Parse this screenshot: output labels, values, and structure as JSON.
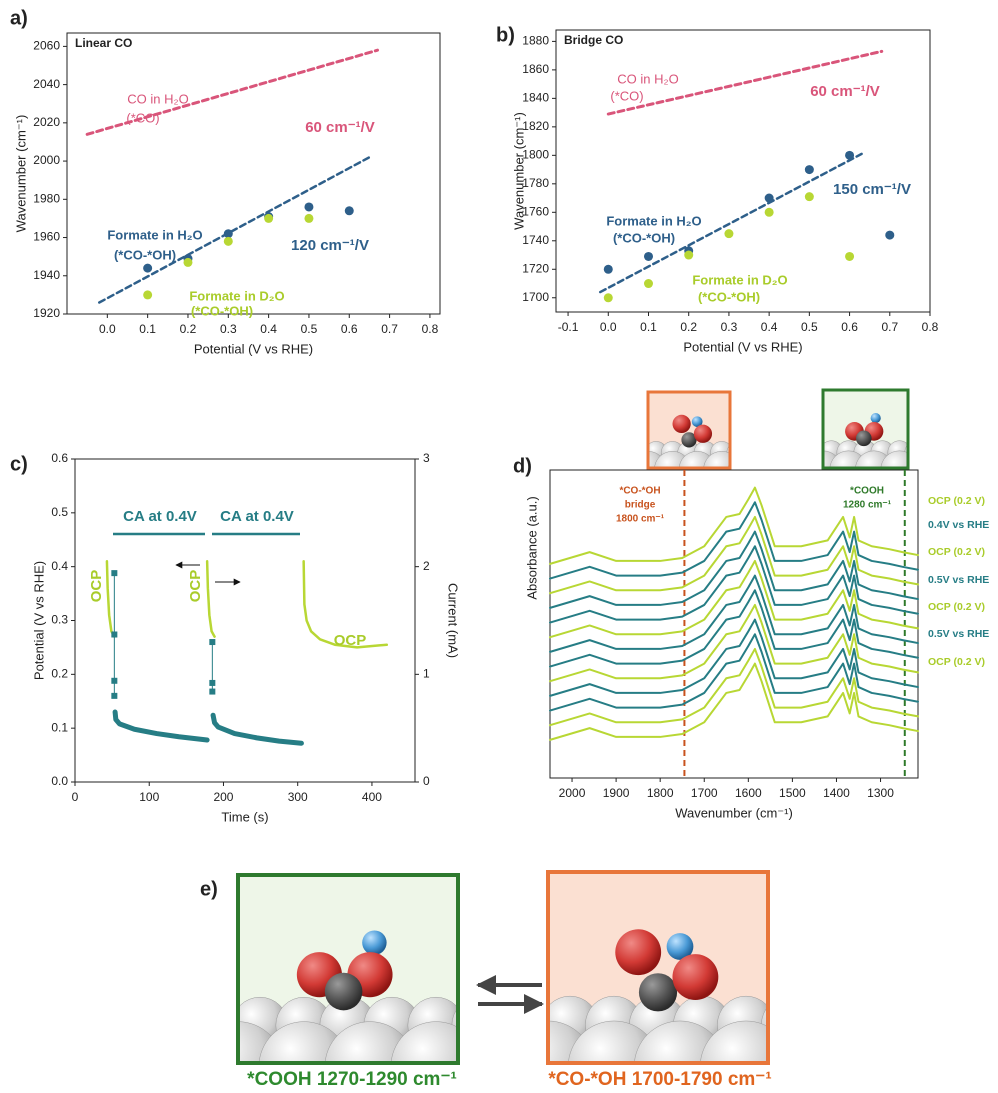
{
  "panel_labels": [
    "a)",
    "b)",
    "c)",
    "d)",
    "e)"
  ],
  "chart_data": [
    {
      "type": "scatter",
      "title": "Linear CO",
      "xlabel": "Potential (V vs RHE)",
      "ylabel": "Wavenumber (cm⁻¹)",
      "xlim": [
        -0.1,
        0.825
      ],
      "ylim": [
        1920,
        2067
      ],
      "xticks": [
        {
          "value": 0,
          "label": "0.0"
        },
        0.1,
        0.2,
        0.3,
        0.4,
        0.5,
        0.6,
        0.7,
        0.8
      ],
      "yticks": [
        1920,
        1940,
        1960,
        1980,
        2000,
        2020,
        2040,
        2060
      ],
      "series": [
        {
          "color": "#d9557a",
          "mode": "line",
          "dash": true,
          "width": 3,
          "x": [
            -0.05,
            0.67
          ],
          "values": [
            2014,
            2058
          ]
        },
        {
          "color": "#2e5f8a",
          "mode": "line",
          "dash": true,
          "width": 2.5,
          "x": [
            -0.02,
            0.65
          ],
          "values": [
            1926,
            2002
          ]
        },
        {
          "color": "#2e5f8a",
          "mode": "scatter",
          "x": [
            0.1,
            0.2,
            0.3,
            0.4,
            0.5,
            0.6
          ],
          "values": [
            1944,
            1949,
            1962,
            1971,
            1976,
            1974
          ]
        },
        {
          "color": "#b8d734",
          "mode": "scatter",
          "x": [
            0.1,
            0.2,
            0.3,
            0.4,
            0.5
          ],
          "values": [
            1930,
            1947,
            1958,
            1970,
            1970
          ]
        }
      ],
      "annotations": [
        "CO in H₂O",
        "(*CO)",
        "60 cm⁻¹/V",
        "Formate in H₂O",
        "(*CO-*OH)",
        "120 cm⁻¹/V",
        "Formate in D₂O",
        "(*CO-*OH)"
      ]
    },
    {
      "type": "scatter",
      "title": "Bridge CO",
      "xlabel": "Potential (V vs RHE)",
      "ylabel": "Wavenumber (cm⁻¹)",
      "xlim": [
        -0.13,
        0.8
      ],
      "ylim": [
        1690,
        1888
      ],
      "xticks": [
        -0.1,
        {
          "value": 0,
          "label": "0.0"
        },
        0.1,
        0.2,
        0.3,
        0.4,
        0.5,
        0.6,
        0.7,
        0.8
      ],
      "yticks": [
        1700,
        1720,
        1740,
        1760,
        1780,
        1800,
        1820,
        1840,
        1860,
        1880
      ],
      "series": [
        {
          "color": "#d9557a",
          "mode": "line",
          "dash": true,
          "width": 3,
          "x": [
            0.0,
            0.68
          ],
          "values": [
            1829,
            1873
          ]
        },
        {
          "color": "#2e5f8a",
          "mode": "line",
          "dash": true,
          "width": 2.5,
          "x": [
            -0.02,
            0.63
          ],
          "values": [
            1704,
            1801
          ]
        },
        {
          "color": "#2e5f8a",
          "mode": "scatter",
          "x": [
            0,
            0.1,
            0.2,
            0.4,
            0.5,
            0.6,
            0.7
          ],
          "values": [
            1720,
            1729,
            1733,
            1770,
            1790,
            1800,
            1744
          ]
        },
        {
          "color": "#b8d734",
          "mode": "scatter",
          "x": [
            0,
            0.1,
            0.2,
            0.3,
            0.4,
            0.5,
            0.6
          ],
          "values": [
            1700,
            1710,
            1730,
            1745,
            1760,
            1771,
            1729
          ]
        }
      ],
      "annotations": [
        "CO in H₂O",
        "(*CO)",
        "60 cm⁻¹/V",
        "Formate in H₂O",
        "(*CO-*OH)",
        "150 cm⁻¹/V",
        "Formate in D₂O",
        "(*CO-*OH)"
      ]
    },
    {
      "type": "line",
      "xlabel": "Time (s)",
      "ylabel": "Potential (V vs RHE)",
      "y2label": "Current (mA)",
      "xlim": [
        0,
        458
      ],
      "ylim": [
        0,
        0.6
      ],
      "y2lim": [
        0,
        3
      ],
      "xticks": [
        0,
        100,
        200,
        300,
        400
      ],
      "yticks": [
        {
          "value": 0,
          "label": "0.0"
        },
        0.1,
        0.2,
        0.3,
        0.4,
        0.5,
        0.6
      ],
      "y2ticks": [
        0,
        1,
        2,
        3
      ],
      "series": [
        {
          "color": "#b8d734",
          "mode": "line",
          "width": 2.5,
          "x": [
            43,
            44,
            46,
            49,
            53
          ],
          "values": [
            0.41,
            0.36,
            0.31,
            0.28,
            0.27
          ]
        },
        {
          "color": "#b8d734",
          "mode": "line",
          "width": 2.5,
          "x": [
            178,
            179,
            181,
            184,
            188
          ],
          "values": [
            0.41,
            0.36,
            0.31,
            0.28,
            0.27
          ]
        },
        {
          "color": "#b8d734",
          "mode": "line",
          "width": 2.5,
          "x": [
            308,
            309,
            312,
            318,
            330,
            350,
            380,
            420
          ],
          "values": [
            0.41,
            0.33,
            0.3,
            0.28,
            0.265,
            0.255,
            0.25,
            0.255
          ]
        },
        {
          "color": "#267d85",
          "mode": "line",
          "width": 1,
          "axis": "y2",
          "x": [
            53,
            53
          ],
          "values": [
            1.94,
            0.8
          ]
        },
        {
          "color": "#267d85",
          "mode": "line",
          "width": 5,
          "axis": "y2",
          "x": [
            54,
            55,
            60,
            80,
            110,
            140,
            178
          ],
          "values": [
            0.65,
            0.58,
            0.54,
            0.49,
            0.45,
            0.42,
            0.39
          ]
        },
        {
          "color": "#267d85",
          "mode": "square",
          "axis": "y2",
          "x": [
            53,
            53,
            53,
            53
          ],
          "values": [
            1.94,
            1.37,
            0.94,
            0.8
          ]
        },
        {
          "color": "#267d85",
          "mode": "line",
          "width": 1,
          "axis": "y2",
          "x": [
            185,
            185
          ],
          "values": [
            1.3,
            0.84
          ]
        },
        {
          "color": "#267d85",
          "mode": "line",
          "width": 5,
          "axis": "y2",
          "x": [
            186,
            188,
            193,
            215,
            245,
            275,
            305
          ],
          "values": [
            0.62,
            0.55,
            0.51,
            0.45,
            0.41,
            0.38,
            0.36
          ]
        },
        {
          "color": "#267d85",
          "mode": "square",
          "axis": "y2",
          "x": [
            185,
            185,
            185
          ],
          "values": [
            1.3,
            0.92,
            0.84
          ]
        }
      ],
      "annotations": [
        "CA at 0.4V",
        "CA at 0.4V",
        "OCP",
        "OCP",
        "OCP"
      ]
    },
    {
      "type": "line",
      "xlabel": "Wavenumber (cm⁻¹)",
      "ylabel": "Absorbance (a.u.)",
      "xlim": [
        2050,
        1215
      ],
      "ylim": [
        0,
        105
      ],
      "xticks": [
        2000,
        1900,
        1800,
        1700,
        1600,
        1500,
        1400,
        1300
      ],
      "x": [
        2050,
        1960,
        1900,
        1800,
        1750,
        1700,
        1650,
        1620,
        1600,
        1585,
        1570,
        1540,
        1480,
        1420,
        1385,
        1370,
        1360,
        1350,
        1320,
        1280,
        1250,
        1215
      ],
      "vlines": [
        {
          "x": 1745,
          "color": "#c8531e"
        },
        {
          "x": 1245,
          "color": "#2f7a2a"
        }
      ],
      "series": [
        {
          "color": "#b8d734",
          "values": [
            13,
            17,
            14,
            14,
            15,
            19,
            29,
            30,
            35,
            39,
            33,
            19,
            19,
            21,
            29,
            22,
            29,
            21,
            19,
            18,
            17,
            16
          ]
        },
        {
          "color": "#b8d734",
          "values": [
            18,
            22,
            19,
            19,
            20,
            24,
            34,
            35,
            40,
            44,
            38,
            24,
            24,
            26,
            34,
            27,
            34,
            26,
            24,
            23,
            22,
            21
          ]
        },
        {
          "color": "#267d85",
          "values": [
            23,
            27,
            24,
            24,
            25,
            29,
            39,
            40,
            45,
            49,
            43,
            29,
            29,
            31,
            39,
            32,
            39,
            31,
            29,
            28,
            27,
            26
          ]
        },
        {
          "color": "#267d85",
          "values": [
            28,
            32,
            29,
            29,
            30,
            34,
            44,
            45,
            50,
            54,
            48,
            34,
            34,
            36,
            44,
            37,
            44,
            36,
            34,
            33,
            32,
            31
          ]
        },
        {
          "color": "#b8d734",
          "values": [
            33,
            37,
            34,
            34,
            35,
            39,
            49,
            50,
            55,
            59,
            53,
            39,
            39,
            41,
            49,
            42,
            49,
            41,
            39,
            38,
            37,
            36
          ]
        },
        {
          "color": "#267d85",
          "values": [
            38,
            42,
            39,
            39,
            40,
            44,
            54,
            55,
            60,
            64,
            58,
            44,
            44,
            46,
            54,
            47,
            54,
            46,
            44,
            43,
            42,
            41
          ]
        },
        {
          "color": "#267d85",
          "values": [
            43,
            47,
            44,
            44,
            45,
            49,
            59,
            60,
            65,
            69,
            63,
            49,
            49,
            51,
            59,
            52,
            59,
            51,
            49,
            48,
            47,
            46
          ]
        },
        {
          "color": "#b8d734",
          "values": [
            48,
            52,
            49,
            49,
            50,
            54,
            64,
            65,
            70,
            74,
            68,
            54,
            54,
            56,
            64,
            57,
            64,
            56,
            54,
            53,
            52,
            51
          ]
        },
        {
          "color": "#267d85",
          "values": [
            53,
            57,
            54,
            54,
            55,
            59,
            69,
            70,
            75,
            79,
            73,
            59,
            59,
            61,
            69,
            62,
            69,
            61,
            59,
            58,
            57,
            56
          ]
        },
        {
          "color": "#267d85",
          "values": [
            58,
            62,
            59,
            59,
            60,
            64,
            74,
            75,
            80,
            84,
            78,
            64,
            64,
            66,
            74,
            67,
            74,
            66,
            64,
            63,
            62,
            61
          ]
        },
        {
          "color": "#b8d734",
          "values": [
            63,
            67,
            64,
            64,
            65,
            69,
            79,
            80,
            85,
            89,
            83,
            69,
            69,
            71,
            79,
            72,
            79,
            71,
            69,
            68,
            67,
            66
          ]
        },
        {
          "color": "#267d85",
          "values": [
            68,
            72,
            69,
            69,
            70,
            74,
            84,
            85,
            90,
            94,
            88,
            74,
            74,
            76,
            84,
            77,
            84,
            76,
            74,
            73,
            72,
            71
          ]
        },
        {
          "color": "#b8d734",
          "values": [
            73,
            77,
            74,
            74,
            75,
            79,
            89,
            90,
            95,
            99,
            93,
            79,
            79,
            81,
            89,
            82,
            89,
            81,
            79,
            78,
            77,
            76
          ]
        }
      ],
      "annotations": [
        "*CO-*OH",
        "bridge",
        "1800 cm⁻¹",
        "*COOH",
        "1280 cm⁻¹",
        "OCP (0.2 V)",
        "0.4V vs RHE",
        "OCP (0.2 V)",
        "0.5V vs RHE",
        "OCP (0.2 V)",
        "0.5V vs RHE",
        "OCP (0.2 V)"
      ]
    }
  ],
  "diagram": {
    "left_label": "*COOH 1270-1290 cm⁻¹",
    "right_label": "*CO-*OH 1700-1790 cm⁻¹"
  }
}
